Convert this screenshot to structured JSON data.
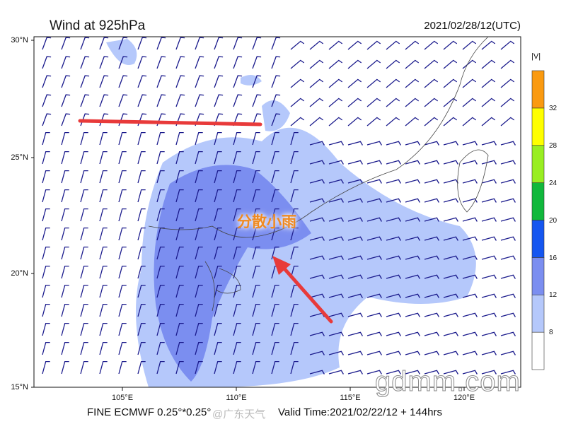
{
  "header": {
    "title": "Wind at 925hPa",
    "datetime": "2021/02/28/12(UTC)"
  },
  "axes": {
    "lat_labels": [
      "30°N",
      "25°N",
      "20°N",
      "15°N"
    ],
    "lon_labels": [
      "105°E",
      "110°E",
      "115°E",
      "120°E"
    ]
  },
  "colorbar": {
    "label": "|V|",
    "ticks": [
      "8",
      "12",
      "16",
      "20",
      "24",
      "28",
      "32"
    ],
    "colors": [
      "#ffffff",
      "#b5c8fb",
      "#7b8ef0",
      "#1556f0",
      "#11b83c",
      "#99ee22",
      "#ffff00",
      "#fa9a10"
    ]
  },
  "footer": {
    "model": "FINE ECMWF 0.25°*0.25°",
    "valid_time": "Valid Time:2021/02/22/12 + 144hrs",
    "weibo": "@广东天气"
  },
  "annotation": {
    "text": "分散小雨",
    "line_color": "#e83a3a",
    "arrow_color": "#e83a3a"
  },
  "watermark": "gdmm.com",
  "colors": {
    "barb": "#1a1a8c",
    "light_fill": "#b5c8fb",
    "mid_fill": "#7b8ef0"
  }
}
